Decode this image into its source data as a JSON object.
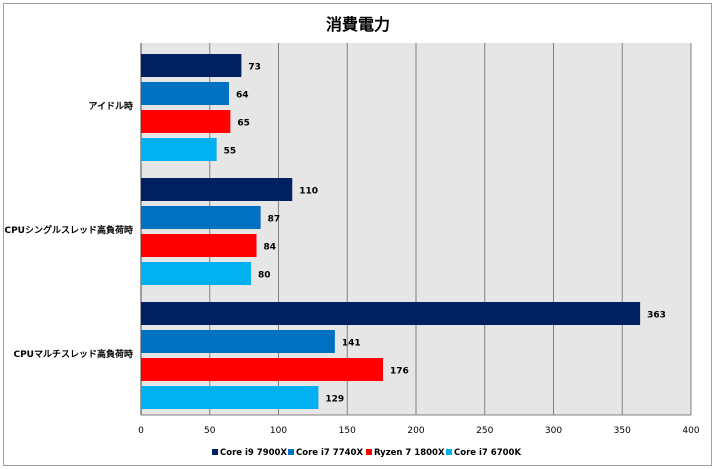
{
  "chart_data": {
    "type": "bar",
    "orientation": "horizontal",
    "title": "消費電力",
    "categories": [
      "アイドル時",
      "CPUシングルスレッド高負荷時",
      "CPUマルチスレッド高負荷時"
    ],
    "series": [
      {
        "name": "Core i9 7900X",
        "color": "#002060",
        "values": [
          73,
          110,
          363
        ]
      },
      {
        "name": "Core i7 7740X",
        "color": "#0070C0",
        "values": [
          64,
          87,
          141
        ]
      },
      {
        "name": "Ryzen 7 1800X",
        "color": "#FF0000",
        "values": [
          65,
          84,
          176
        ]
      },
      {
        "name": "Core i7 6700K",
        "color": "#00B0F0",
        "values": [
          55,
          80,
          129
        ]
      }
    ],
    "xlim": [
      0,
      400
    ],
    "xticks": [
      0,
      50,
      100,
      150,
      200,
      250,
      300,
      350,
      400
    ],
    "xlabel": "",
    "ylabel": "",
    "grid": true,
    "legend": "bottom"
  }
}
